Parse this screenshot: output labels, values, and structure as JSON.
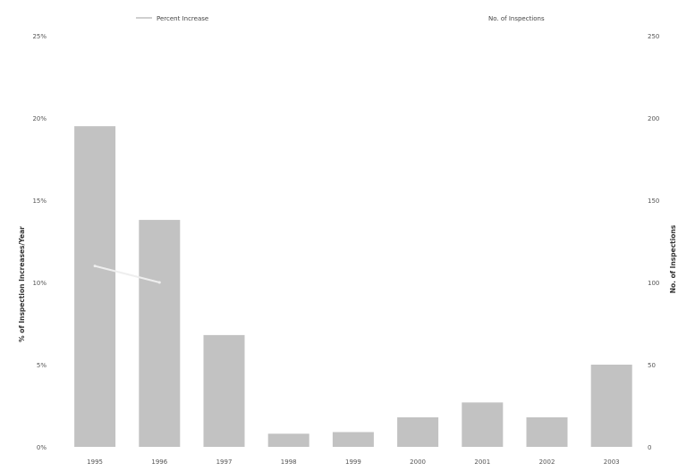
{
  "chart_data": {
    "type": "bar",
    "categories": [
      "1995",
      "1996",
      "1997",
      "1998",
      "1999",
      "2000",
      "2001",
      "2002",
      "2003"
    ],
    "category_labels": [
      "1995",
      "1996",
      "1997",
      "1998",
      "1999",
      "2000",
      "2001",
      "2002",
      "2003"
    ],
    "series": [
      {
        "name": "No. of Inspections",
        "axis": "right",
        "type": "bar",
        "values": [
          195,
          138,
          68,
          8,
          9,
          18,
          27,
          18,
          50
        ],
        "color": "#c2c2c2"
      },
      {
        "name": "Percent Increase",
        "axis": "left",
        "type": "line",
        "values": [
          11,
          10,
          null,
          null,
          null,
          null,
          null,
          null,
          null
        ],
        "color": "#eeeeee"
      }
    ],
    "y_left": {
      "label": "% of Inspection Increases/Year",
      "ticks": [
        "0%",
        "5%",
        "10%",
        "15%",
        "20%",
        "25%"
      ],
      "range": [
        0,
        25
      ]
    },
    "y_right": {
      "label": "No. of Inspections",
      "ticks": [
        "0",
        "50",
        "100",
        "150",
        "200",
        "250"
      ],
      "range": [
        0,
        250
      ]
    },
    "legend": {
      "placement": "top",
      "items": [
        "Percent Increase",
        "No. of Inspections"
      ]
    },
    "grid": false
  }
}
